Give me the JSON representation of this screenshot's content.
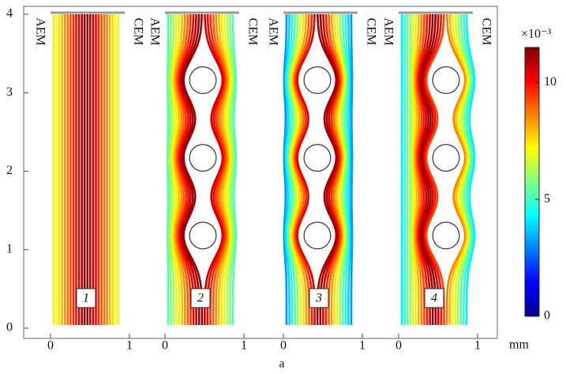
{
  "chart_data": {
    "type": "streamline",
    "xlabel": "a",
    "x_unit": "mm",
    "ylim": [
      0,
      4
    ],
    "yticks": [
      0,
      1,
      2,
      3,
      4
    ],
    "panels": [
      {
        "label": "1",
        "left_label": "AEM",
        "right_label": "CEM",
        "xlim": [
          0,
          1
        ],
        "xticks": [
          0,
          1
        ],
        "obstacles": []
      },
      {
        "label": "2",
        "left_label": "AEM",
        "right_label": "CEM",
        "xlim": [
          0,
          1
        ],
        "xticks": [
          0,
          1
        ],
        "obstacles": [
          {
            "x": 0.48,
            "y": 3.16,
            "r": 0.17
          },
          {
            "x": 0.48,
            "y": 2.17,
            "r": 0.17
          },
          {
            "x": 0.48,
            "y": 1.18,
            "r": 0.17
          }
        ]
      },
      {
        "label": "3",
        "left_label": "AEM",
        "right_label": "CEM",
        "xlim": [
          0,
          1
        ],
        "xticks": [
          0,
          1
        ],
        "obstacles": [
          {
            "x": 0.43,
            "y": 3.16,
            "r": 0.17
          },
          {
            "x": 0.43,
            "y": 2.17,
            "r": 0.17
          },
          {
            "x": 0.43,
            "y": 1.18,
            "r": 0.17
          }
        ]
      },
      {
        "label": "4",
        "left_label": "AEM",
        "right_label": "CEM",
        "xlim": [
          0,
          1
        ],
        "xticks": [
          0,
          1
        ],
        "obstacles": [
          {
            "x": 0.6,
            "y": 3.16,
            "r": 0.17
          },
          {
            "x": 0.6,
            "y": 2.17,
            "r": 0.17
          },
          {
            "x": 0.6,
            "y": 1.18,
            "r": 0.17
          }
        ]
      }
    ],
    "colorbar": {
      "scale_label": "×10⁻³",
      "lim": [
        0,
        11.5
      ],
      "ticks": [
        0,
        5,
        10
      ],
      "colormap": "jet"
    }
  }
}
